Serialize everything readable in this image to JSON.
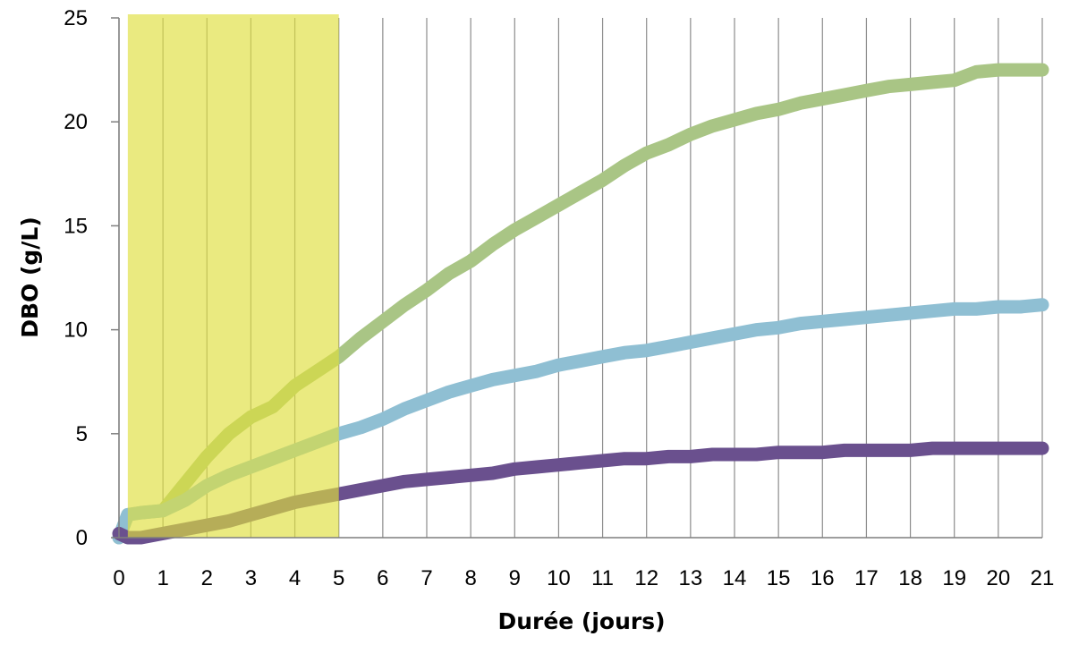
{
  "chart_data": {
    "type": "line",
    "title": "",
    "xlabel": "Durée (jours)",
    "ylabel": "DBO (g/L)",
    "xlim": [
      0,
      21
    ],
    "ylim": [
      0,
      25
    ],
    "xticks": [
      0,
      1,
      2,
      3,
      4,
      5,
      6,
      7,
      8,
      9,
      10,
      11,
      12,
      13,
      14,
      15,
      16,
      17,
      18,
      19,
      20,
      21
    ],
    "yticks": [
      0,
      5,
      10,
      15,
      20,
      25
    ],
    "grid": "vertical",
    "legend": "none",
    "highlight": {
      "x_range": [
        0.2,
        5
      ],
      "color": "#dede3c",
      "opacity": 0.65
    },
    "series": [
      {
        "color": "#a9c585",
        "x": [
          0,
          0.2,
          0.5,
          1,
          1.5,
          2,
          2.5,
          3,
          3.5,
          4,
          4.5,
          5,
          5.5,
          6,
          6.5,
          7,
          7.5,
          8,
          8.5,
          9,
          9.5,
          10,
          10.5,
          11,
          11.5,
          12,
          12.5,
          13,
          13.5,
          14,
          14.5,
          15,
          15.5,
          16,
          16.5,
          17,
          17.5,
          18,
          18.5,
          19,
          19.5,
          20,
          20.5,
          21
        ],
        "y": [
          0,
          1.1,
          1.2,
          1.3,
          2.6,
          3.9,
          5.0,
          5.8,
          6.3,
          7.3,
          8.0,
          8.7,
          9.6,
          10.4,
          11.2,
          11.9,
          12.7,
          13.3,
          14.1,
          14.8,
          15.4,
          16.0,
          16.6,
          17.2,
          17.9,
          18.5,
          18.9,
          19.4,
          19.8,
          20.1,
          20.4,
          20.6,
          20.9,
          21.1,
          21.3,
          21.5,
          21.7,
          21.8,
          21.9,
          22.0,
          22.4,
          22.5,
          22.5,
          22.5
        ]
      },
      {
        "color": "#8fbfd3",
        "x": [
          0,
          0.2,
          0.5,
          1,
          1.5,
          2,
          2.5,
          3,
          3.5,
          4,
          4.5,
          5,
          5.5,
          6,
          6.5,
          7,
          7.5,
          8,
          8.5,
          9,
          9.5,
          10,
          10.5,
          11,
          11.5,
          12,
          12.5,
          13,
          13.5,
          14,
          14.5,
          15,
          15.5,
          16,
          16.5,
          17,
          17.5,
          18,
          18.5,
          19,
          19.5,
          20,
          20.5,
          21
        ],
        "y": [
          0,
          1.1,
          1.2,
          1.3,
          1.8,
          2.5,
          3.0,
          3.4,
          3.8,
          4.2,
          4.6,
          5.0,
          5.3,
          5.7,
          6.2,
          6.6,
          7.0,
          7.3,
          7.6,
          7.8,
          8.0,
          8.3,
          8.5,
          8.7,
          8.9,
          9.0,
          9.2,
          9.4,
          9.6,
          9.8,
          10.0,
          10.1,
          10.3,
          10.4,
          10.5,
          10.6,
          10.7,
          10.8,
          10.9,
          11.0,
          11.0,
          11.1,
          11.1,
          11.2
        ]
      },
      {
        "color": "#6a508e",
        "x": [
          0,
          0.2,
          0.5,
          1,
          1.5,
          2,
          2.5,
          3,
          3.5,
          4,
          4.5,
          5,
          5.5,
          6,
          6.5,
          7,
          7.5,
          8,
          8.5,
          9,
          9.5,
          10,
          10.5,
          11,
          11.5,
          12,
          12.5,
          13,
          13.5,
          14,
          14.5,
          15,
          15.5,
          16,
          16.5,
          17,
          17.5,
          18,
          18.5,
          19,
          19.5,
          20,
          20.5,
          21
        ],
        "y": [
          0.2,
          0.0,
          0.0,
          0.2,
          0.4,
          0.6,
          0.8,
          1.1,
          1.4,
          1.7,
          1.9,
          2.1,
          2.3,
          2.5,
          2.7,
          2.8,
          2.9,
          3.0,
          3.1,
          3.3,
          3.4,
          3.5,
          3.6,
          3.7,
          3.8,
          3.8,
          3.9,
          3.9,
          4.0,
          4.0,
          4.0,
          4.1,
          4.1,
          4.1,
          4.2,
          4.2,
          4.2,
          4.2,
          4.3,
          4.3,
          4.3,
          4.3,
          4.3,
          4.3
        ]
      }
    ]
  }
}
